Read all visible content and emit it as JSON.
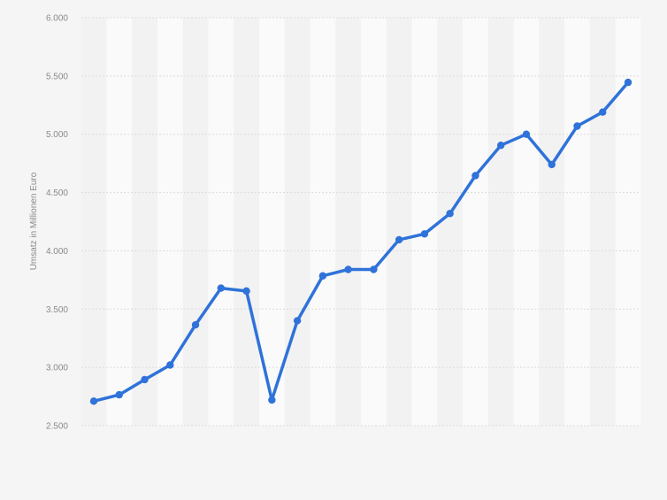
{
  "chart_data": {
    "type": "line",
    "title": "",
    "xlabel": "",
    "ylabel": "Umsatz in Millionen Euro",
    "ylim": [
      2500,
      6000
    ],
    "yticks": [
      "2.500",
      "3.000",
      "3.500",
      "4.000",
      "4.500",
      "5.000",
      "5.500",
      "6.000"
    ],
    "ytick_values": [
      2500,
      3000,
      3500,
      4000,
      4500,
      5000,
      5500,
      6000
    ],
    "grid": true,
    "series": [
      {
        "values": [
          2710,
          2765,
          2895,
          3020,
          3365,
          3680,
          3655,
          2720,
          3400,
          3785,
          3840,
          3840,
          4095,
          4145,
          4320,
          4645,
          4905,
          5000,
          4740,
          5070,
          5190,
          5445
        ],
        "color": "#2f72d9"
      }
    ],
    "colors": {
      "background": "#f5f5f5",
      "band_light": "#fafafa",
      "band_dark": "#f2f2f2",
      "gridline": "#dcdcdc",
      "line": "#2f72d9"
    }
  }
}
